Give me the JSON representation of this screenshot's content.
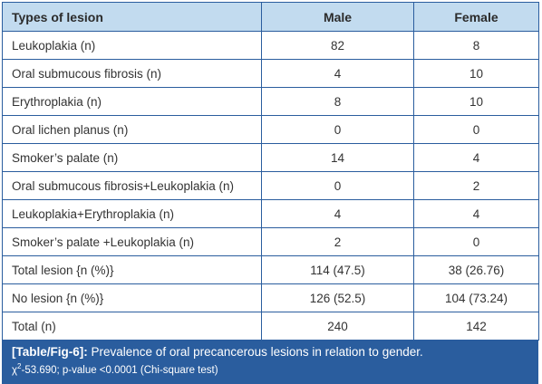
{
  "table": {
    "headers": [
      "Types of lesion",
      "Male",
      "Female"
    ],
    "rows": [
      [
        "Leukoplakia (n)",
        "82",
        "8"
      ],
      [
        "Oral submucous fibrosis (n)",
        "4",
        "10"
      ],
      [
        "Erythroplakia (n)",
        "8",
        "10"
      ],
      [
        "Oral lichen planus (n)",
        "0",
        "0"
      ],
      [
        "Smoker’s palate (n)",
        "14",
        "4"
      ],
      [
        "Oral submucous fibrosis+Leukoplakia (n)",
        "0",
        "2"
      ],
      [
        "Leukoplakia+Erythroplakia (n)",
        "4",
        "4"
      ],
      [
        "Smoker’s palate +Leukoplakia (n)",
        "2",
        "0"
      ],
      [
        "Total lesion {n (%)}",
        "114 (47.5)",
        "38 (26.76)"
      ],
      [
        "No lesion {n (%)}",
        "126 (52.5)",
        "104 (73.24)"
      ],
      [
        "Total (n)",
        "240",
        "142"
      ]
    ]
  },
  "caption": {
    "label": "[Table/Fig-6]:",
    "text": "Prevalence of oral precancerous lesions in relation to gender.",
    "chi_symbol": "χ",
    "chi_sup": "2",
    "stats": "-53.690; p-value <0.0001 (Chi-square test)"
  },
  "colors": {
    "border": "#2a5d9e",
    "header_bg": "#c2dbef",
    "caption_bg": "#2a5d9e"
  }
}
